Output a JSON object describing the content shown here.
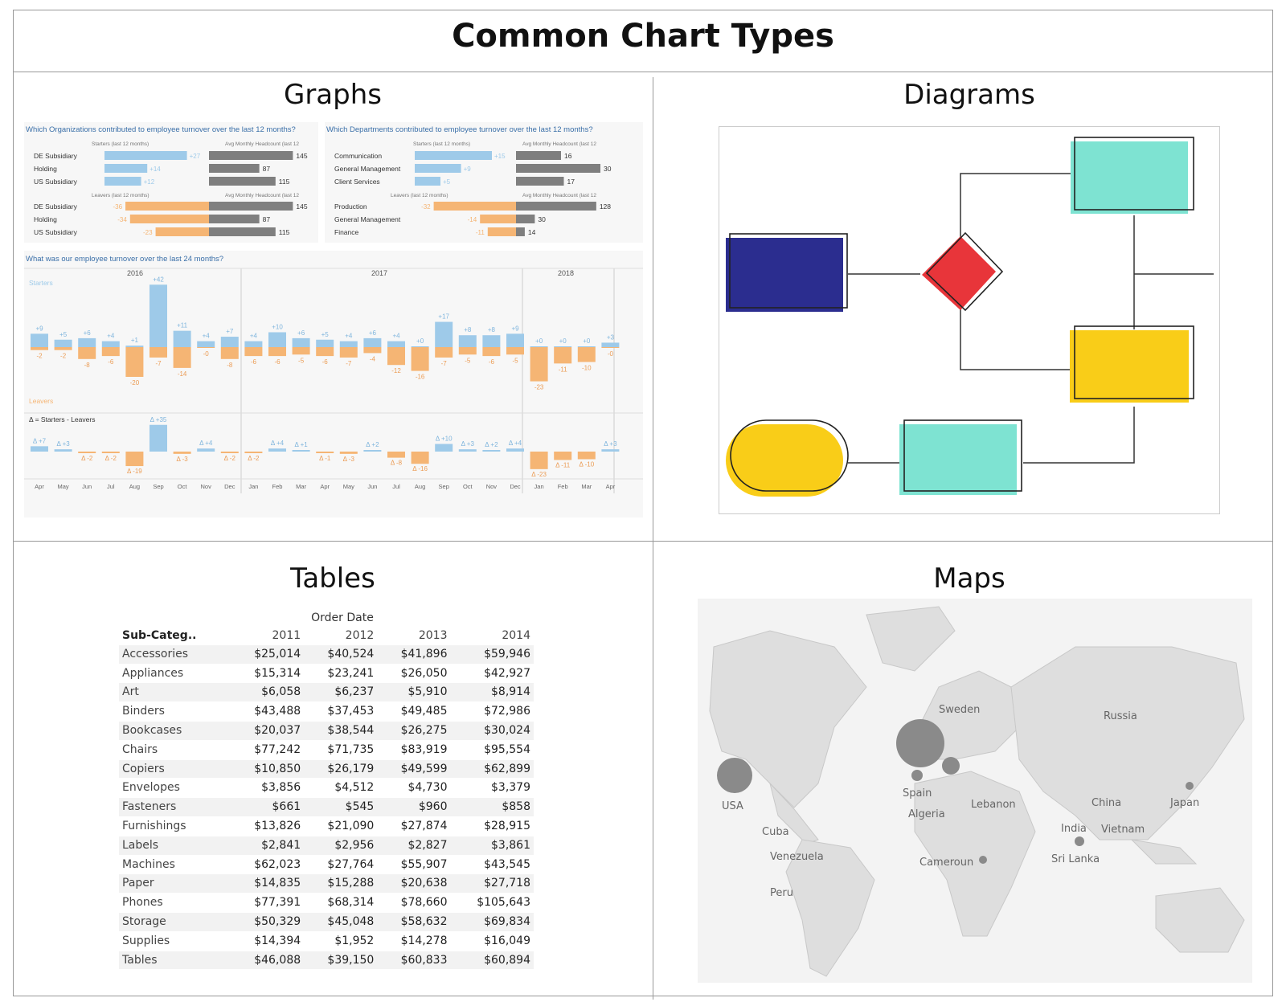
{
  "page": {
    "title": "Common Chart Types",
    "quadrants": {
      "graphs": "Graphs",
      "diagrams": "Diagrams",
      "tables": "Tables",
      "maps": "Maps"
    }
  },
  "colors": {
    "starters": "#9ecae9",
    "leavers": "#f5b574",
    "headcount": "#7f7f7f",
    "diagram_navy": "#2b2d8f",
    "diagram_red": "#e8353a",
    "diagram_teal": "#7ee3d2",
    "diagram_yellow": "#f9cd18",
    "map_land": "#dedede",
    "map_bubble": "#8a8a8a"
  },
  "graphs": {
    "org_title": "Which Organizations contributed to employee turnover over the last 12 months?",
    "dept_title": "Which Departments contributed to employee turnover over the last 12 months?",
    "starters_header": "Starters (last 12 months)",
    "leavers_header": "Leavers (last 12 months)",
    "headcount_header": "Avg Monthly Headcount (last 12",
    "turnover_title": "What was our employee turnover over the last 24 months?",
    "starters_label": "Starters",
    "leavers_label": "Leavers",
    "delta_label": "Δ = Starters - Leavers",
    "years": [
      "2016",
      "2017",
      "2018"
    ]
  },
  "chart_data": [
    {
      "type": "bar",
      "title": "Which Organizations contributed to employee turnover over the last 12 months?",
      "categories": [
        "DE Subsidiary",
        "Holding",
        "US Subsidiary"
      ],
      "series": [
        {
          "name": "Starters (last 12 months)",
          "values": [
            27,
            14,
            12
          ],
          "labels": [
            "+27",
            "+14",
            "+12"
          ]
        },
        {
          "name": "Leavers (last 12 months)",
          "values": [
            -36,
            -34,
            -23
          ],
          "labels": [
            "-36",
            "-34",
            "-23"
          ]
        },
        {
          "name": "Avg Monthly Headcount (last 12",
          "values": [
            145,
            87,
            115
          ]
        }
      ]
    },
    {
      "type": "bar",
      "title": "Which Departments contributed to employee turnover over the last 12 months?",
      "starters": {
        "categories": [
          "Communication",
          "General Management",
          "Client Services"
        ],
        "values": [
          15,
          9,
          5
        ],
        "labels": [
          "+15",
          "+9",
          "+5"
        ],
        "headcount": [
          16,
          30,
          17
        ]
      },
      "leavers": {
        "categories": [
          "Production",
          "General Management",
          "Finance"
        ],
        "values": [
          -32,
          -14,
          -11
        ],
        "labels": [
          "-32",
          "-14",
          "-11"
        ],
        "headcount": [
          128,
          30,
          14
        ]
      }
    },
    {
      "type": "bar",
      "title": "What was our employee turnover over the last 24 months?",
      "categories": [
        "Apr",
        "May",
        "Jun",
        "Jul",
        "Aug",
        "Sep",
        "Oct",
        "Nov",
        "Dec",
        "Jan",
        "Feb",
        "Mar",
        "Apr",
        "May",
        "Jun",
        "Jul",
        "Aug",
        "Sep",
        "Oct",
        "Nov",
        "Dec",
        "Jan",
        "Feb",
        "Mar",
        "Apr"
      ],
      "series": [
        {
          "name": "Starters",
          "values": [
            9,
            5,
            6,
            4,
            1,
            42,
            11,
            4,
            7,
            4,
            10,
            6,
            5,
            4,
            6,
            4,
            0,
            17,
            8,
            8,
            9,
            0,
            0,
            0,
            3
          ],
          "labels": [
            "+9",
            "+5",
            "+6",
            "+4",
            "+1",
            "+42",
            "+11",
            "+4",
            "+7",
            "+4",
            "+10",
            "+6",
            "+5",
            "+4",
            "+6",
            "+4",
            "+0",
            "+17",
            "+8",
            "+8",
            "+9",
            "+0",
            "+0",
            "+0",
            "+3"
          ]
        },
        {
          "name": "Leavers",
          "values": [
            -2,
            -2,
            -8,
            -6,
            -20,
            -7,
            -14,
            0,
            -8,
            -6,
            -6,
            -5,
            -6,
            -7,
            -4,
            -12,
            -16,
            -7,
            -5,
            -6,
            -5,
            -23,
            -11,
            -10,
            0
          ],
          "labels": [
            "-2",
            "-2",
            "-8",
            "-6",
            "-20",
            "-7",
            "-14",
            "-0",
            "-8",
            "-6",
            "-6",
            "-5",
            "-6",
            "-7",
            "-4",
            "-12",
            "-16",
            "-7",
            "-5",
            "-6",
            "-5",
            "-23",
            "-11",
            "-10",
            "-0"
          ]
        },
        {
          "name": "Δ = Starters - Leavers",
          "values": [
            7,
            3,
            -2,
            -2,
            -19,
            35,
            -3,
            4,
            -2,
            -2,
            4,
            1,
            -1,
            -3,
            2,
            -8,
            -16,
            10,
            3,
            2,
            4,
            -23,
            -11,
            -10,
            3
          ],
          "labels": [
            "Δ +7",
            "Δ +3",
            "Δ -2",
            "Δ -2",
            "Δ -19",
            "Δ +35",
            "Δ -3",
            "Δ +4",
            "Δ -2",
            "Δ -2",
            "Δ +4",
            "Δ +1",
            "Δ -1",
            "Δ -3",
            "Δ +2",
            "Δ -8",
            "Δ -16",
            "Δ +10",
            "Δ +3",
            "Δ +2",
            "Δ +4",
            "Δ -23",
            "Δ -11",
            "Δ -10",
            "Δ +3"
          ]
        }
      ]
    },
    {
      "type": "table",
      "column_group": "Order Date",
      "columns": [
        "Sub-Categ..",
        "2011",
        "2012",
        "2013",
        "2014"
      ],
      "rows": [
        [
          "Accessories",
          "$25,014",
          "$40,524",
          "$41,896",
          "$59,946"
        ],
        [
          "Appliances",
          "$15,314",
          "$23,241",
          "$26,050",
          "$42,927"
        ],
        [
          "Art",
          "$6,058",
          "$6,237",
          "$5,910",
          "$8,914"
        ],
        [
          "Binders",
          "$43,488",
          "$37,453",
          "$49,485",
          "$72,986"
        ],
        [
          "Bookcases",
          "$20,037",
          "$38,544",
          "$26,275",
          "$30,024"
        ],
        [
          "Chairs",
          "$77,242",
          "$71,735",
          "$83,919",
          "$95,554"
        ],
        [
          "Copiers",
          "$10,850",
          "$26,179",
          "$49,599",
          "$62,899"
        ],
        [
          "Envelopes",
          "$3,856",
          "$4,512",
          "$4,730",
          "$3,379"
        ],
        [
          "Fasteners",
          "$661",
          "$545",
          "$960",
          "$858"
        ],
        [
          "Furnishings",
          "$13,826",
          "$21,090",
          "$27,874",
          "$28,915"
        ],
        [
          "Labels",
          "$2,841",
          "$2,956",
          "$2,827",
          "$3,861"
        ],
        [
          "Machines",
          "$62,023",
          "$27,764",
          "$55,907",
          "$43,545"
        ],
        [
          "Paper",
          "$14,835",
          "$15,288",
          "$20,638",
          "$27,718"
        ],
        [
          "Phones",
          "$77,391",
          "$68,314",
          "$78,660",
          "$105,643"
        ],
        [
          "Storage",
          "$50,329",
          "$45,048",
          "$58,632",
          "$69,834"
        ],
        [
          "Supplies",
          "$14,394",
          "$1,952",
          "$14,278",
          "$16,049"
        ],
        [
          "Tables",
          "$46,088",
          "$39,150",
          "$60,833",
          "$60,894"
        ]
      ]
    }
  ],
  "map": {
    "labels": [
      "Sweden",
      "Russia",
      "USA",
      "Spain",
      "Lebanon",
      "China",
      "Japan",
      "Algeria",
      "India",
      "Vietnam",
      "Cuba",
      "Venezuela",
      "Cameroun",
      "Sri Lanka",
      "Peru"
    ]
  }
}
